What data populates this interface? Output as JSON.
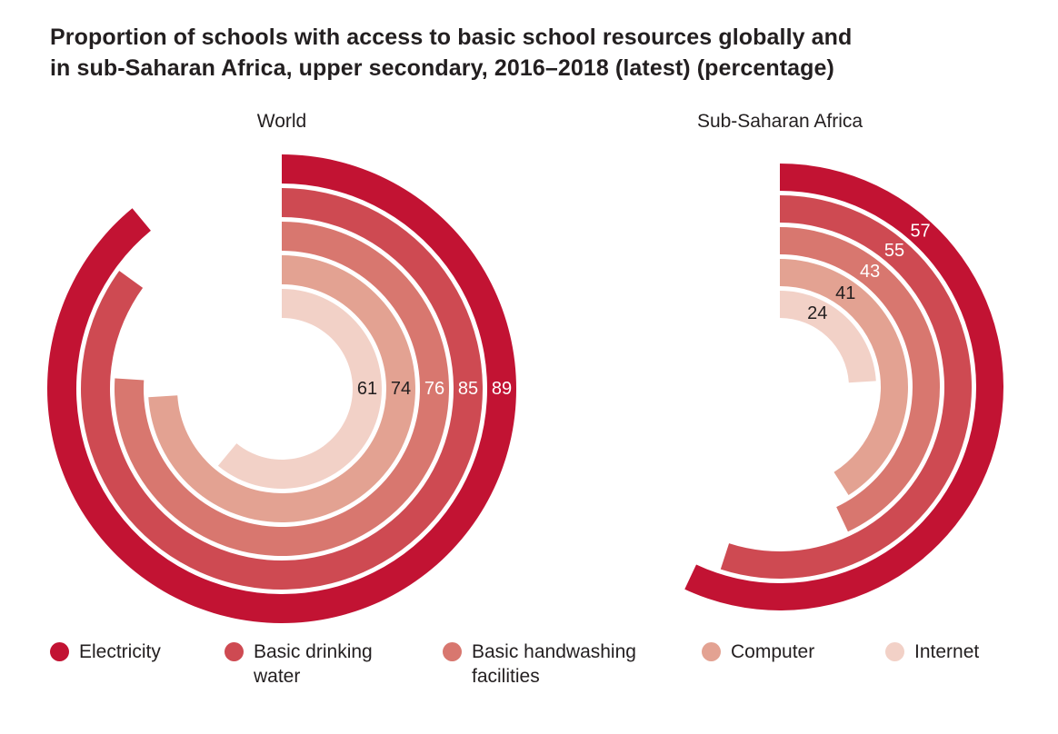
{
  "page": {
    "title": "Proportion of schools with access to basic school resources globally and\nin sub-Saharan Africa, upper secondary, 2016–2018 (latest) (percentage)"
  },
  "chart_data": {
    "type": "bar",
    "subtype": "radial-bar",
    "unit": "percentage",
    "categories": [
      "Electricity",
      "Basic drinking water",
      "Basic handwashing facilities",
      "Computer",
      "Internet"
    ],
    "colors": [
      "#c21333",
      "#ce4a52",
      "#d8776f",
      "#e3a292",
      "#f2d1c7"
    ],
    "label_colors": [
      "#ffffff",
      "#ffffff",
      "#ffffff",
      "#231f20",
      "#231f20"
    ],
    "charts": [
      {
        "title": "World",
        "values": [
          89,
          85,
          76,
          74,
          61
        ],
        "label_angles_deg": [
          90,
          90,
          90,
          90,
          90
        ]
      },
      {
        "title": "Sub-Saharan Africa",
        "values": [
          57,
          55,
          43,
          41,
          24
        ],
        "label_angles_deg": [
          42,
          40,
          38,
          35,
          27
        ]
      }
    ],
    "scale": {
      "min": 0,
      "max": 100,
      "start_angle": "12 o'clock",
      "direction": "clockwise",
      "rings_order": "outermost to innermost follows categories order"
    }
  }
}
